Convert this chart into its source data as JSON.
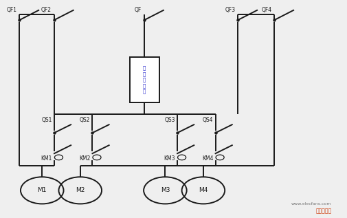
{
  "bg_color": "#efefef",
  "line_color": "#1a1a1a",
  "line_width": 1.4,
  "box_text": "變\n頻\n調\n速\n器",
  "watermark_url": "www.elecfans.com",
  "watermark_site": "电子发烧友"
}
